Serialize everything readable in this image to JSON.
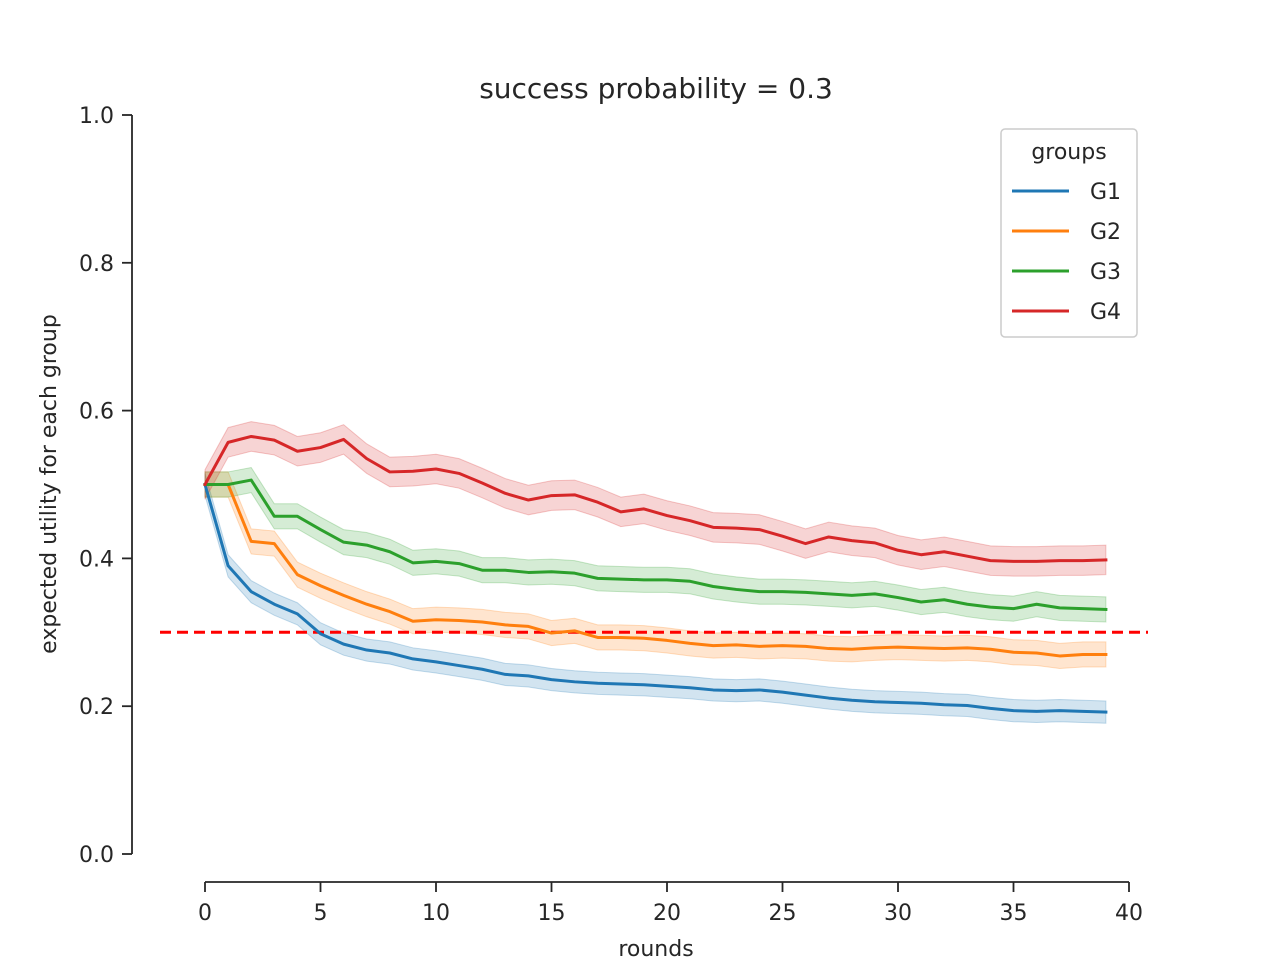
{
  "chart_data": {
    "type": "line",
    "title": "success probability = 0.3",
    "xlabel": "rounds",
    "ylabel": "expected utility for each group",
    "xlim": [
      -3.2,
      40
    ],
    "ylim": [
      0.0,
      1.0
    ],
    "xticks": [
      0,
      5,
      10,
      15,
      20,
      25,
      30,
      35,
      40
    ],
    "yticks": [
      0.0,
      0.2,
      0.4,
      0.6,
      0.8,
      1.0
    ],
    "xtick_labels": [
      "0",
      "5",
      "10",
      "15",
      "20",
      "25",
      "30",
      "35",
      "40"
    ],
    "ytick_labels": [
      "0.0",
      "0.2",
      "0.4",
      "0.6",
      "0.8",
      "1.0"
    ],
    "grid": false,
    "legend": {
      "title": "groups",
      "placement": "top-right"
    },
    "x": [
      0,
      1,
      2,
      3,
      4,
      5,
      6,
      7,
      8,
      9,
      10,
      11,
      12,
      13,
      14,
      15,
      16,
      17,
      18,
      19,
      20,
      21,
      22,
      23,
      24,
      25,
      26,
      27,
      28,
      29,
      30,
      31,
      32,
      33,
      34,
      35,
      36,
      37,
      38,
      39
    ],
    "series": [
      {
        "name": "G1",
        "color": "#1f77b4",
        "values": [
          0.5,
          0.39,
          0.355,
          0.338,
          0.325,
          0.298,
          0.284,
          0.276,
          0.272,
          0.264,
          0.26,
          0.255,
          0.25,
          0.243,
          0.241,
          0.236,
          0.233,
          0.231,
          0.23,
          0.229,
          0.227,
          0.225,
          0.222,
          0.221,
          0.222,
          0.219,
          0.215,
          0.211,
          0.208,
          0.206,
          0.205,
          0.204,
          0.202,
          0.201,
          0.197,
          0.194,
          0.193,
          0.194,
          0.193,
          0.192
        ],
        "band": 0.015
      },
      {
        "name": "G2",
        "color": "#ff7f0e",
        "values": [
          0.5,
          0.5,
          0.423,
          0.42,
          0.378,
          0.363,
          0.35,
          0.338,
          0.328,
          0.315,
          0.317,
          0.316,
          0.314,
          0.31,
          0.308,
          0.299,
          0.302,
          0.293,
          0.293,
          0.292,
          0.289,
          0.285,
          0.282,
          0.283,
          0.281,
          0.282,
          0.281,
          0.278,
          0.277,
          0.279,
          0.28,
          0.279,
          0.278,
          0.279,
          0.277,
          0.273,
          0.272,
          0.268,
          0.27,
          0.27
        ],
        "band": 0.017
      },
      {
        "name": "G3",
        "color": "#2ca02c",
        "values": [
          0.5,
          0.5,
          0.506,
          0.457,
          0.457,
          0.439,
          0.422,
          0.418,
          0.409,
          0.394,
          0.396,
          0.393,
          0.384,
          0.384,
          0.381,
          0.382,
          0.38,
          0.373,
          0.372,
          0.371,
          0.371,
          0.369,
          0.362,
          0.358,
          0.355,
          0.355,
          0.354,
          0.352,
          0.35,
          0.352,
          0.347,
          0.341,
          0.344,
          0.338,
          0.334,
          0.332,
          0.338,
          0.333,
          0.332,
          0.331
        ],
        "band": 0.017
      },
      {
        "name": "G4",
        "color": "#d62728",
        "values": [
          0.5,
          0.557,
          0.565,
          0.56,
          0.545,
          0.55,
          0.561,
          0.535,
          0.517,
          0.518,
          0.521,
          0.515,
          0.502,
          0.488,
          0.479,
          0.485,
          0.486,
          0.476,
          0.463,
          0.467,
          0.458,
          0.451,
          0.442,
          0.441,
          0.439,
          0.43,
          0.42,
          0.429,
          0.424,
          0.421,
          0.411,
          0.405,
          0.409,
          0.403,
          0.397,
          0.396,
          0.396,
          0.397,
          0.397,
          0.398
        ],
        "band": 0.02
      }
    ],
    "reference_line": {
      "y": 0.3,
      "color": "#ff0000",
      "style": "dashed"
    }
  }
}
